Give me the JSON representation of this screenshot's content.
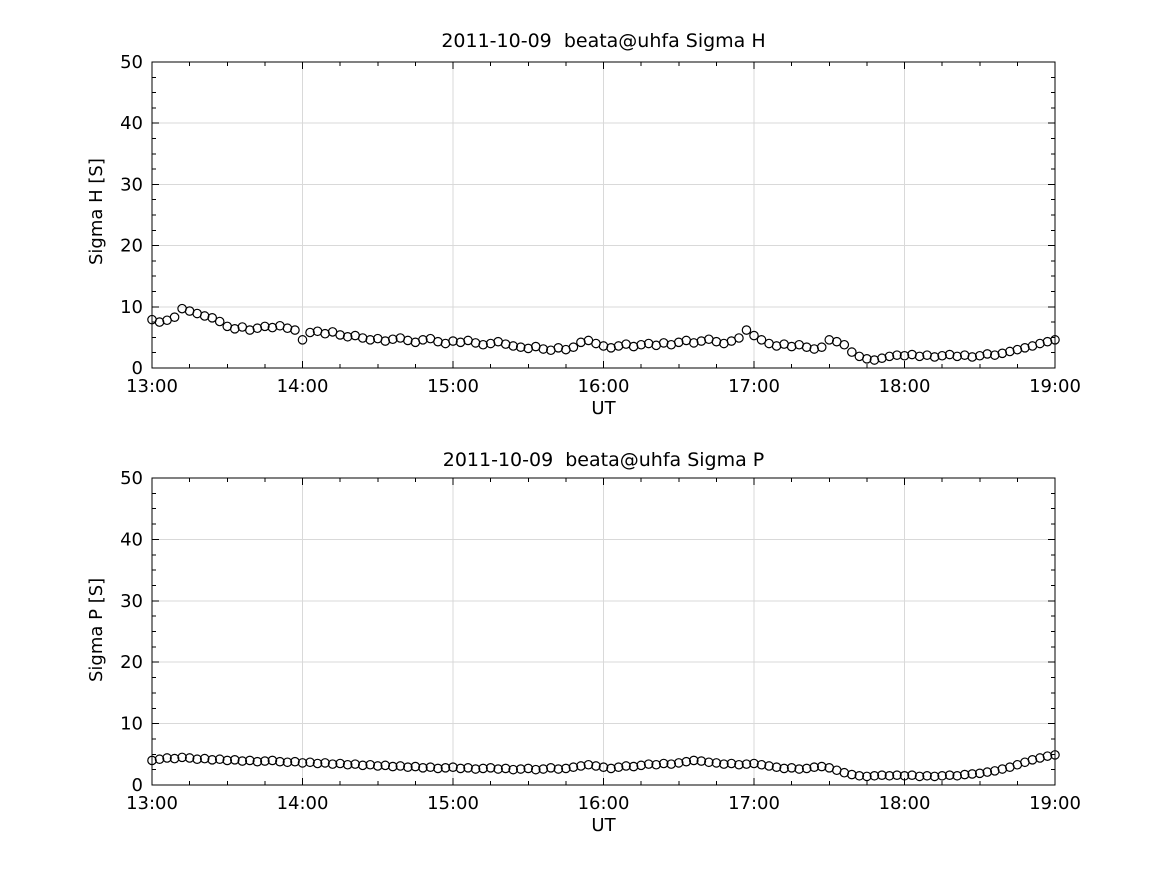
{
  "style": {
    "background": "#ffffff",
    "axis_color": "#000000",
    "grid_color": "#d9d9d9",
    "marker_color": "#000000",
    "text_color": "#000000"
  },
  "chart_data": [
    {
      "type": "scatter",
      "title": "2011-10-09  beata@uhfa Sigma H",
      "xlabel": "UT",
      "ylabel": "Sigma H [S]",
      "xlim": [
        13,
        19
      ],
      "ylim": [
        0,
        50
      ],
      "grid": true,
      "legend": "none",
      "marker": {
        "shape": "open-circle",
        "color": "#000000",
        "fill": "none"
      },
      "x_ticks": [
        13,
        14,
        15,
        16,
        17,
        18,
        19
      ],
      "x_tick_labels": [
        "13:00",
        "14:00",
        "15:00",
        "16:00",
        "17:00",
        "18:00",
        "19:00"
      ],
      "y_ticks": [
        0,
        10,
        20,
        30,
        40,
        50
      ],
      "y_tick_labels": [
        "0",
        "10",
        "20",
        "30",
        "40",
        "50"
      ],
      "x": [
        13,
        13.05,
        13.1,
        13.15,
        13.2,
        13.25,
        13.3,
        13.35,
        13.4,
        13.45,
        13.5,
        13.55,
        13.6,
        13.65,
        13.7,
        13.75,
        13.8,
        13.85,
        13.9,
        13.95,
        14,
        14.05,
        14.1,
        14.15,
        14.2,
        14.25,
        14.3,
        14.35,
        14.4,
        14.45,
        14.5,
        14.55,
        14.6,
        14.65,
        14.7,
        14.75,
        14.8,
        14.85,
        14.9,
        14.95,
        15,
        15.05,
        15.1,
        15.15,
        15.2,
        15.25,
        15.3,
        15.35,
        15.4,
        15.45,
        15.5,
        15.55,
        15.6,
        15.65,
        15.7,
        15.75,
        15.8,
        15.85,
        15.9,
        15.95,
        16,
        16.05,
        16.1,
        16.15,
        16.2,
        16.25,
        16.3,
        16.35,
        16.4,
        16.45,
        16.5,
        16.55,
        16.6,
        16.65,
        16.7,
        16.75,
        16.8,
        16.85,
        16.9,
        16.95,
        17,
        17.05,
        17.1,
        17.15,
        17.2,
        17.25,
        17.3,
        17.35,
        17.4,
        17.45,
        17.5,
        17.55,
        17.6,
        17.65,
        17.7,
        17.75,
        17.8,
        17.85,
        17.9,
        17.95,
        18,
        18.05,
        18.1,
        18.15,
        18.2,
        18.25,
        18.3,
        18.35,
        18.4,
        18.45,
        18.5,
        18.55,
        18.6,
        18.65,
        18.7,
        18.75,
        18.8,
        18.85,
        18.9,
        18.95,
        19
      ],
      "values": [
        7.9,
        7.5,
        7.8,
        8.3,
        9.7,
        9.3,
        8.9,
        8.5,
        8.2,
        7.6,
        6.8,
        6.4,
        6.7,
        6.2,
        6.5,
        6.8,
        6.6,
        6.9,
        6.5,
        6.2,
        4.6,
        5.8,
        6.0,
        5.6,
        5.9,
        5.4,
        5.1,
        5.3,
        4.9,
        4.6,
        4.8,
        4.4,
        4.7,
        4.9,
        4.5,
        4.2,
        4.6,
        4.8,
        4.3,
        4.0,
        4.4,
        4.2,
        4.5,
        4.1,
        3.8,
        4.0,
        4.3,
        3.9,
        3.6,
        3.4,
        3.2,
        3.5,
        3.1,
        2.9,
        3.3,
        3.0,
        3.4,
        4.2,
        4.5,
        4.0,
        3.6,
        3.3,
        3.6,
        3.9,
        3.5,
        3.8,
        4.0,
        3.7,
        4.1,
        3.8,
        4.2,
        4.5,
        4.1,
        4.4,
        4.7,
        4.3,
        4.0,
        4.4,
        4.9,
        6.2,
        5.3,
        4.6,
        4.0,
        3.6,
        3.9,
        3.5,
        3.8,
        3.4,
        3.1,
        3.4,
        4.6,
        4.3,
        3.8,
        2.6,
        1.9,
        1.5,
        1.3,
        1.6,
        1.9,
        2.1,
        2.0,
        2.2,
        1.9,
        2.1,
        1.8,
        2.0,
        2.2,
        1.9,
        2.1,
        1.8,
        2.0,
        2.3,
        2.1,
        2.4,
        2.7,
        3.0,
        3.3,
        3.6,
        4.0,
        4.3,
        4.6
      ]
    },
    {
      "type": "scatter",
      "title": "2011-10-09  beata@uhfa Sigma P",
      "xlabel": "UT",
      "ylabel": "Sigma P [S]",
      "xlim": [
        13,
        19
      ],
      "ylim": [
        0,
        50
      ],
      "grid": true,
      "legend": "none",
      "marker": {
        "shape": "open-circle",
        "color": "#000000",
        "fill": "none"
      },
      "x_ticks": [
        13,
        14,
        15,
        16,
        17,
        18,
        19
      ],
      "x_tick_labels": [
        "13:00",
        "14:00",
        "15:00",
        "16:00",
        "17:00",
        "18:00",
        "19:00"
      ],
      "y_ticks": [
        0,
        10,
        20,
        30,
        40,
        50
      ],
      "y_tick_labels": [
        "0",
        "10",
        "20",
        "30",
        "40",
        "50"
      ],
      "x": [
        13,
        13.05,
        13.1,
        13.15,
        13.2,
        13.25,
        13.3,
        13.35,
        13.4,
        13.45,
        13.5,
        13.55,
        13.6,
        13.65,
        13.7,
        13.75,
        13.8,
        13.85,
        13.9,
        13.95,
        14,
        14.05,
        14.1,
        14.15,
        14.2,
        14.25,
        14.3,
        14.35,
        14.4,
        14.45,
        14.5,
        14.55,
        14.6,
        14.65,
        14.7,
        14.75,
        14.8,
        14.85,
        14.9,
        14.95,
        15,
        15.05,
        15.1,
        15.15,
        15.2,
        15.25,
        15.3,
        15.35,
        15.4,
        15.45,
        15.5,
        15.55,
        15.6,
        15.65,
        15.7,
        15.75,
        15.8,
        15.85,
        15.9,
        15.95,
        16,
        16.05,
        16.1,
        16.15,
        16.2,
        16.25,
        16.3,
        16.35,
        16.4,
        16.45,
        16.5,
        16.55,
        16.6,
        16.65,
        16.7,
        16.75,
        16.8,
        16.85,
        16.9,
        16.95,
        17,
        17.05,
        17.1,
        17.15,
        17.2,
        17.25,
        17.3,
        17.35,
        17.4,
        17.45,
        17.5,
        17.55,
        17.6,
        17.65,
        17.7,
        17.75,
        17.8,
        17.85,
        17.9,
        17.95,
        18,
        18.05,
        18.1,
        18.15,
        18.2,
        18.25,
        18.3,
        18.35,
        18.4,
        18.45,
        18.5,
        18.55,
        18.6,
        18.65,
        18.7,
        18.75,
        18.8,
        18.85,
        18.9,
        18.95,
        19
      ],
      "values": [
        4.0,
        4.2,
        4.4,
        4.3,
        4.5,
        4.4,
        4.2,
        4.3,
        4.1,
        4.2,
        4.0,
        4.1,
        3.9,
        4.0,
        3.8,
        3.9,
        4.0,
        3.8,
        3.7,
        3.8,
        3.6,
        3.7,
        3.5,
        3.6,
        3.4,
        3.5,
        3.3,
        3.4,
        3.2,
        3.3,
        3.1,
        3.2,
        3.0,
        3.1,
        2.9,
        3.0,
        2.8,
        2.9,
        2.7,
        2.8,
        2.9,
        2.7,
        2.8,
        2.6,
        2.7,
        2.8,
        2.6,
        2.7,
        2.5,
        2.6,
        2.7,
        2.5,
        2.6,
        2.8,
        2.6,
        2.7,
        2.9,
        3.1,
        3.3,
        3.1,
        2.9,
        2.7,
        2.9,
        3.1,
        3.0,
        3.2,
        3.4,
        3.3,
        3.5,
        3.4,
        3.6,
        3.8,
        4.0,
        3.9,
        3.7,
        3.6,
        3.4,
        3.5,
        3.3,
        3.4,
        3.5,
        3.3,
        3.1,
        2.9,
        2.7,
        2.8,
        2.6,
        2.7,
        2.9,
        3.0,
        2.8,
        2.4,
        2.0,
        1.7,
        1.5,
        1.4,
        1.5,
        1.6,
        1.5,
        1.6,
        1.5,
        1.6,
        1.4,
        1.5,
        1.4,
        1.5,
        1.6,
        1.5,
        1.7,
        1.8,
        1.9,
        2.1,
        2.3,
        2.6,
        2.9,
        3.3,
        3.7,
        4.1,
        4.4,
        4.7,
        4.9
      ]
    }
  ]
}
